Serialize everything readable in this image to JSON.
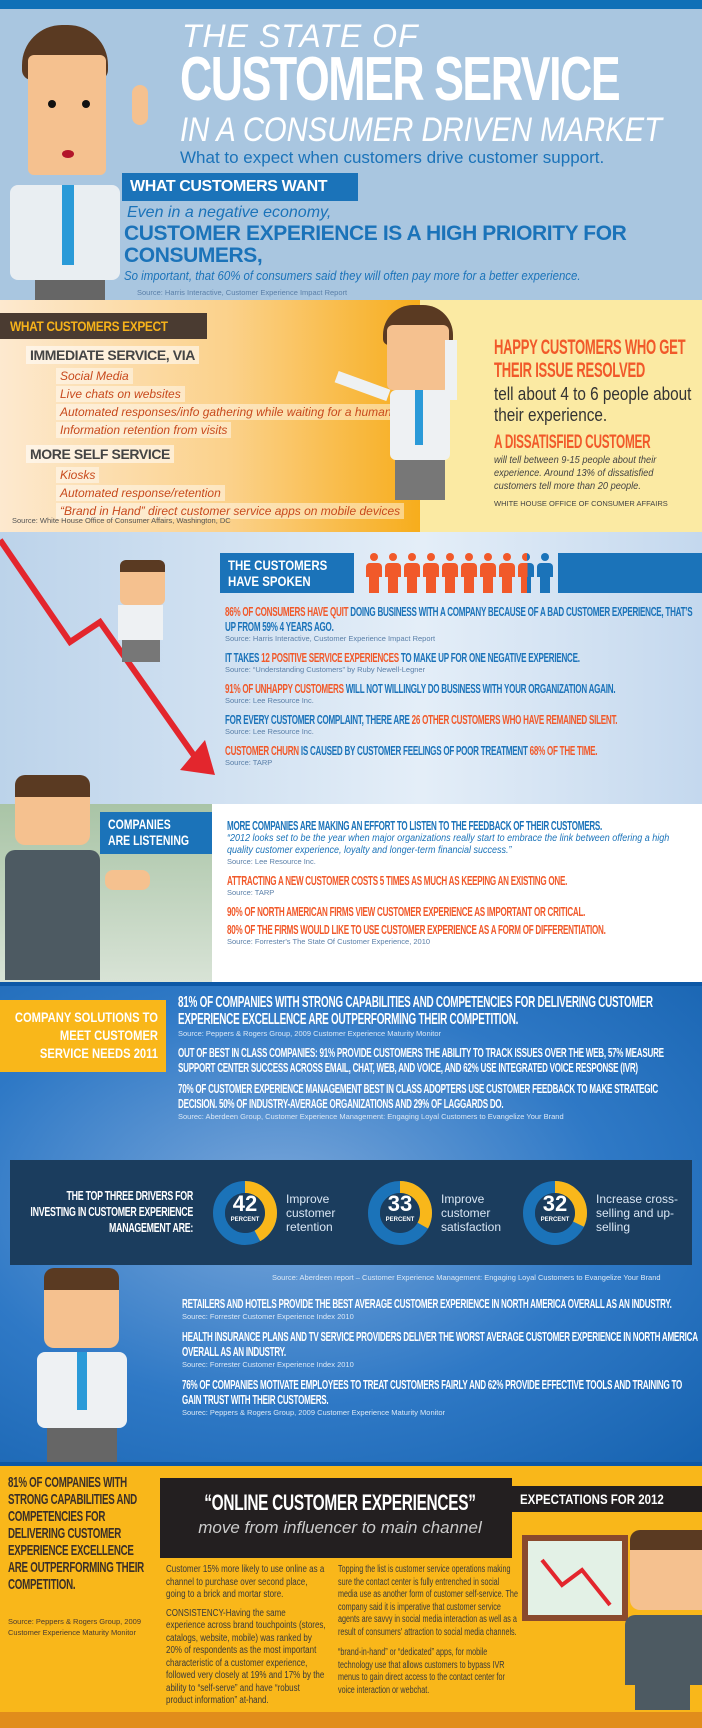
{
  "header": {
    "title_line1": "THE STATE OF",
    "title_line2": "CUSTOMER SERVICE",
    "title_line3": "IN A CONSUMER DRIVEN MARKET",
    "subtitle": "What to expect when customers drive customer support.",
    "want_label": "WHAT CUSTOMERS WANT",
    "even": "Even in a negative economy,",
    "priority": "CUSTOMER EXPERIENCE IS A HIGH PRIORITY FOR CONSUMERS,",
    "so_important": "So important, that 60% of consumers said they will often pay more for a better experience.",
    "source": "Source: Harris Interactive, Customer Experience Impact Report"
  },
  "expect": {
    "title": "WHAT CUSTOMERS EXPECT",
    "groups": [
      {
        "heading": "IMMEDIATE SERVICE, VIA",
        "items": [
          "Social Media",
          "Live chats on websites",
          "Automated responses/info gathering while waiting for a human.",
          "Information retention from visits"
        ]
      },
      {
        "heading": "MORE SELF SERVICE",
        "items": [
          "Kiosks",
          "Automated response/retention",
          "“Brand in Hand” direct customer service apps on mobile devices"
        ]
      }
    ],
    "source": "Source: White House Office of Consumer Affairs, Washington, DC",
    "happy": "HAPPY CUSTOMERS WHO GET THEIR ISSUE RESOLVED",
    "happy_tell": "tell about 4 to 6 people about their experience.",
    "dissatisfied": "A DISSATISFIED CUSTOMER",
    "dissatisfied_text": "will tell between 9-15 people about their experience. Around 13% of dissatisfied customers tell more than 20 people.",
    "right_source": "WHITE HOUSE OFFICE OF CONSUMER AFFAIRS"
  },
  "spoken": {
    "title_line1": "THE CUSTOMERS",
    "title_line2": "HAVE SPOKEN",
    "people_highlight_percent": 86,
    "colors": {
      "orange": "#f1592a",
      "blue": "#1b73b9"
    },
    "statements": [
      {
        "a": "86% OF CONSUMERS HAVE QUIT",
        "b": " DOING BUSINESS WITH A COMPANY BECAUSE OF A BAD CUSTOMER EXPERIENCE, THAT’S UP FROM 59% 4 YEARS AGO.",
        "c": "",
        "d": "",
        "source": "Source: Harris Interactive, Customer Experience Impact Report"
      },
      {
        "a": "",
        "b": "IT TAKES ",
        "c": "12 POSITIVE SERVICE EXPERIENCES",
        "d": " TO MAKE UP FOR ONE NEGATIVE EXPERIENCE.",
        "source": "Source: “Understanding Customers” by Ruby Newell-Legner"
      },
      {
        "a": "91% OF UNHAPPY CUSTOMERS",
        "b": " WILL NOT WILLINGLY DO BUSINESS WITH YOUR ORGANIZATION AGAIN.",
        "c": "",
        "d": "",
        "source": "Source: Lee Resource Inc."
      },
      {
        "a": "",
        "b": "FOR EVERY CUSTOMER COMPLAINT, THERE ARE ",
        "c": "26 OTHER CUSTOMERS WHO HAVE REMAINED SILENT.",
        "d": "",
        "source": "Source: Lee Resource Inc."
      },
      {
        "a": "CUSTOMER CHURN",
        "b": " IS CAUSED BY CUSTOMER FEELINGS OF POOR TREATMENT ",
        "c": "68% OF THE TIME.",
        "d": "",
        "source": "Source: TARP"
      }
    ]
  },
  "listening": {
    "title_line1": "COMPANIES",
    "title_line2": "ARE LISTENING",
    "s1": "MORE COMPANIES ARE MAKING AN EFFORT TO LISTEN TO THE FEEDBACK OF THEIR CUSTOMERS.",
    "quote": "“2012 looks set to be the year when major organizations really start to embrace the link between offering a high quality customer experience, loyalty and longer-term financial success.”",
    "s1_source": "Source: Lee Resource Inc.",
    "s2": "ATTRACTING A NEW CUSTOMER COSTS 5 TIMES AS MUCH AS KEEPING AN EXISTING ONE.",
    "s2_source": "Source: TARP",
    "s3": "90% OF NORTH AMERICAN FIRMS VIEW CUSTOMER EXPERIENCE AS IMPORTANT OR CRITICAL.",
    "s4": "80% OF THE FIRMS WOULD LIKE TO USE CUSTOMER EXPERIENCE AS A FORM OF DIFFERENTIATION.",
    "s4_source": "Source: Forrester's The State Of Customer Experience, 2010"
  },
  "solutions": {
    "title": "COMPANY SOLUTIONS TO MEET CUSTOMER SERVICE NEEDS 2011",
    "items": [
      {
        "text": "81% OF COMPANIES WITH STRONG CAPABILITIES AND COMPETENCIES FOR DELIVERING CUSTOMER EXPERIENCE EXCELLENCE ARE OUTPERFORMING THEIR COMPETITION.",
        "source": "Source: Peppers & Rogers Group, 2009 Customer Experience Maturity Monitor"
      },
      {
        "text": "OUT OF BEST IN CLASS COMPANIES: 91% PROVIDE CUSTOMERS THE ABILITY TO TRACK ISSUES OVER THE WEB, 57% MEASURE SUPPORT CENTER SUCCESS ACROSS EMAIL, CHAT, WEB, AND VOICE, AND 62% USE INTEGRATED VOICE RESPONSE (IVR)",
        "source": ""
      },
      {
        "text": "70% OF CUSTOMER EXPERIENCE MANAGEMENT BEST IN CLASS ADOPTERS USE CUSTOMER FEEDBACK TO MAKE STRATEGIC DECISION. 50% OF INDUSTRY-AVERAGE ORGANIZATIONS AND 29% OF LAGGARDS DO.",
        "source": "Sourec: Aberdeen Group, Customer Experience Management: Engaging Loyal Customers to Evangelize Your Brand"
      }
    ],
    "drivers_title": "THE TOP THREE DRIVERS FOR INVESTING IN CUSTOMER EXPERIENCE MANAGEMENT ARE:",
    "drivers": [
      {
        "value": 42,
        "unit": "PERCENT",
        "label": "Improve customer retention"
      },
      {
        "value": 33,
        "unit": "PERCENT",
        "label": "Improve customer satisfaction"
      },
      {
        "value": 32,
        "unit": "PERCENT",
        "label": "Increase cross-selling and up-selling"
      }
    ],
    "donut_colors": {
      "fill": "#f9b71a",
      "rest": "#1b73b9"
    },
    "drivers_source": "Source: Aberdeen report – Customer Experience Management: Engaging Loyal Customers to Evangelize Your Brand",
    "items2": [
      {
        "text": "RETAILERS AND HOTELS PROVIDE THE BEST AVERAGE CUSTOMER EXPERIENCE IN NORTH AMERICA OVERALL AS AN INDUSTRY.",
        "source": "Sourec: Forrester Customer Experience Index 2010"
      },
      {
        "text": "HEALTH INSURANCE PLANS AND TV SERVICE PROVIDERS DELIVER THE WORST AVERAGE CUSTOMER EXPERIENCE IN NORTH AMERICA OVERALL AS AN INDUSTRY.",
        "source": "Sourec: Forrester Customer Experience Index 2010"
      },
      {
        "text": "76% OF COMPANIES MOTIVATE EMPLOYEES TO TREAT CUSTOMERS FAIRLY AND 62% PROVIDE EFFECTIVE TOOLS AND TRAINING TO GAIN TRUST WITH THEIR CUSTOMERS.",
        "source": "Sourec: Peppers & Rogers Group, 2009 Customer Experience Maturity Monitor"
      }
    ]
  },
  "online": {
    "left_big": "81% OF COMPANIES WITH STRONG CAPABILITIES AND COMPETENCIES FOR DELIVERING CUSTOMER EXPERIENCE EXCELLENCE ARE OUTPERFORMING THEIR COMPETITION.",
    "left_source": "Source: Peppers & Rogers Group, 2009 Customer Experience Maturity Monitor",
    "title": "“ONLINE CUSTOMER EXPERIENCES”",
    "subtitle": "move from influencer to main channel",
    "expectations": "EXPECTATIONS FOR 2012",
    "col1_p1": "Customer 15% more likely to use online as a channel to purchase over second place, going to a brick and mortar store.",
    "col1_p2": "CONSISTENCY-Having the same experience across brand touchpoints (stores, catalogs, website, mobile) was ranked by 20% of respondents as the most important characteristic of a customer experience, followed very closely at 19% and 17% by the ability to “self-serve” and have “robust product information” at-hand.",
    "col2_p1": "Topping the list is customer service operations making sure the contact center is fully entrenched in social media use as another form of customer self-service. The company said it is imperative that customer service agents are savvy in social media interaction as well as a result of consumers' attraction to social media channels.",
    "col2_p2": "“brand-in-hand” or “dedicated” apps, for mobile technology use that allows customers to bypass IVR menus to gain direct access to the contact center for voice interaction or webchat."
  }
}
